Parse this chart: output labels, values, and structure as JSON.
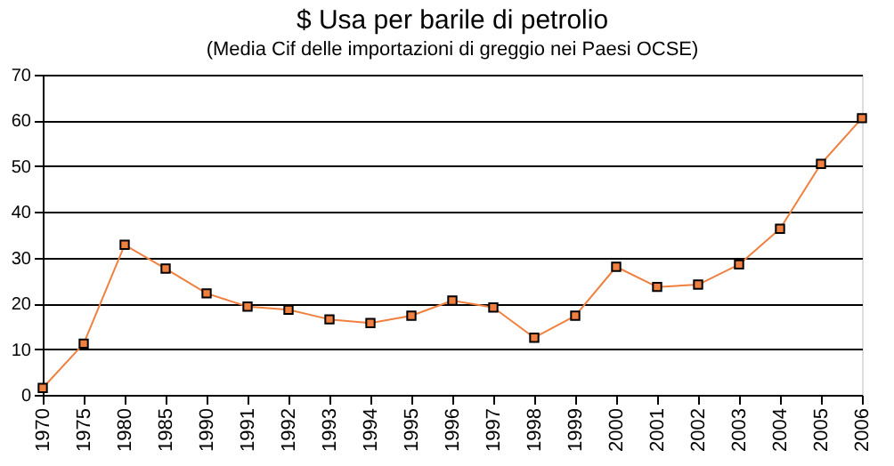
{
  "chart_data": {
    "type": "line",
    "title": "$ Usa per barile di petrolio",
    "subtitle": "(Media Cif delle importazioni di greggio nei Paesi OCSE)",
    "categories": [
      "1970",
      "1975",
      "1980",
      "1985",
      "1990",
      "1991",
      "1992",
      "1993",
      "1994",
      "1995",
      "1996",
      "1997",
      "1998",
      "1999",
      "2000",
      "2001",
      "2002",
      "2003",
      "2004",
      "2005",
      "2006"
    ],
    "series": [
      {
        "color": "#f08040",
        "values": [
          1.5,
          11.2,
          32.8,
          27.6,
          22.2,
          19.3,
          18.6,
          16.5,
          15.7,
          17.3,
          20.6,
          19.1,
          12.5,
          17.3,
          28.0,
          23.6,
          24.1,
          28.5,
          36.3,
          50.5,
          60.5
        ]
      }
    ],
    "ylim": [
      0,
      70
    ],
    "yticks": [
      0,
      10,
      20,
      30,
      40,
      50,
      60,
      70
    ],
    "grid": "y",
    "marker": "square",
    "line_style": "solid"
  }
}
